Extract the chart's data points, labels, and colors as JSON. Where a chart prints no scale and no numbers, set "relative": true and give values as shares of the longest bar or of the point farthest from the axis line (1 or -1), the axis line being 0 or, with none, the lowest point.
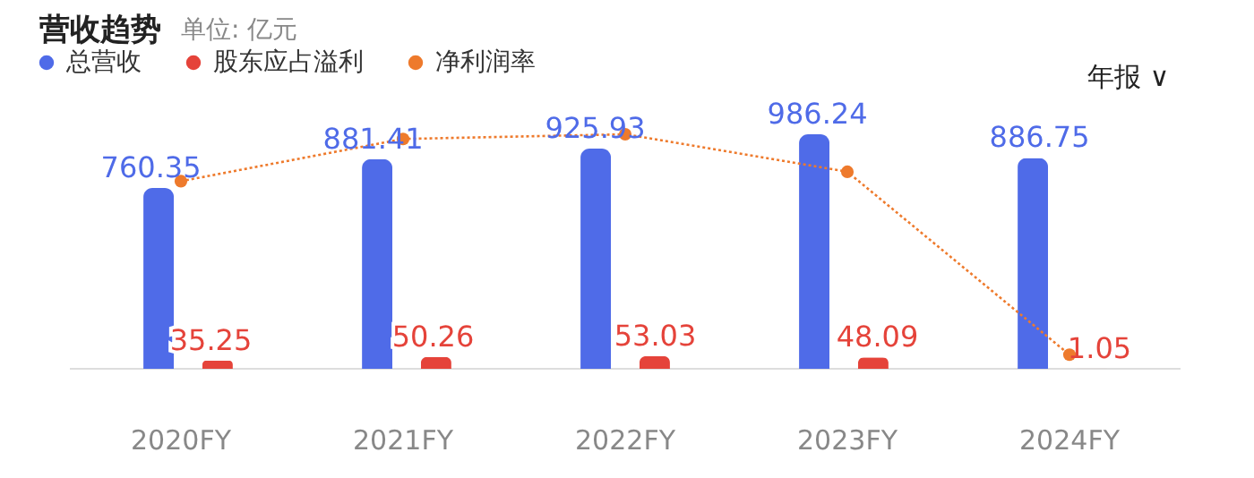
{
  "chart_data": [
    {
      "type": "bar",
      "title": "营收趋势",
      "subtitle": "单位: 亿元",
      "annotations": [
        "年报 ∨"
      ],
      "categories": [
        "2020FY",
        "2021FY",
        "2022FY",
        "2023FY",
        "2024FY"
      ],
      "series": [
        {
          "name": "总营收",
          "color": "#4f6be8",
          "values": [
            760.35,
            881.41,
            925.93,
            986.24,
            886.75
          ]
        },
        {
          "name": "股东应占溢利",
          "color": "#e5433a",
          "values": [
            35.25,
            50.26,
            53.03,
            48.09,
            1.05
          ]
        }
      ],
      "data_labels": true,
      "legend": "top left"
    },
    {
      "type": "line",
      "relative": true,
      "categories": [
        "2020FY",
        "2021FY",
        "2022FY",
        "2023FY",
        "2024FY"
      ],
      "series": [
        {
          "name": "净利润率",
          "color": "#ee7a2c",
          "values": [
            0.8,
            0.98,
            1.0,
            0.84,
            0.06
          ]
        }
      ],
      "marker": "circle",
      "line_style": "dotted",
      "legend": "top left",
      "tick_labels": false
    }
  ]
}
